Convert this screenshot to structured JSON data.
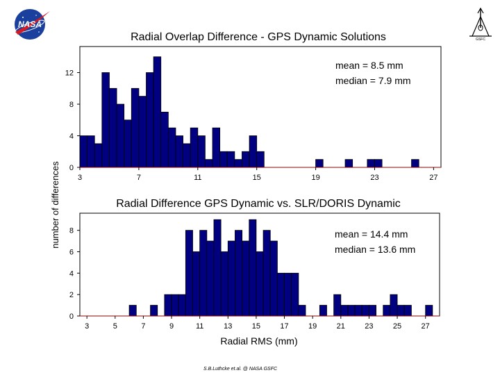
{
  "logos": {
    "nasa": {
      "text": "NASA",
      "colors": {
        "disc": "#1b3f9c",
        "swoosh": "#d71920",
        "text": "#ffffff"
      }
    },
    "gsfc": {
      "text": "GSFC"
    }
  },
  "colors": {
    "bar_fill": "#000080",
    "bar_stroke": "#000000",
    "baseline": "#8b0000",
    "frame": "#000000"
  },
  "ylabel": "number of differences",
  "credit": "S.B.Luthcke et.al. @ NASA GSFC",
  "chart_data": [
    {
      "type": "bar",
      "title": "Radial Overlap Difference - GPS Dynamic Solutions",
      "xlabel": "",
      "ylabel": "number of differences",
      "bin_width": 0.5,
      "bin_centers": [
        3.25,
        3.75,
        4.25,
        4.75,
        5.25,
        5.75,
        6.25,
        6.75,
        7.25,
        7.75,
        8.25,
        8.75,
        9.25,
        9.75,
        10.25,
        10.75,
        11.25,
        11.75,
        12.25,
        12.75,
        13.25,
        13.75,
        14.25,
        14.75,
        15.25,
        19.25,
        21.25,
        22.75,
        23.25,
        25.75
      ],
      "values": [
        4,
        4,
        3,
        12,
        10,
        8,
        6,
        10,
        9,
        12,
        14,
        7,
        5,
        4,
        3,
        5,
        4,
        1,
        5,
        2,
        2,
        1,
        2,
        4,
        2,
        1,
        1,
        1,
        1,
        1
      ],
      "xlim": [
        3,
        27.5
      ],
      "ylim": [
        0,
        15.3
      ],
      "xticks": [
        3,
        7,
        11,
        15,
        19,
        23,
        27
      ],
      "yticks": [
        0,
        4,
        8,
        12
      ],
      "annotations": [
        "mean = 8.5 mm",
        "median = 7.9 mm"
      ],
      "grid": false
    },
    {
      "type": "bar",
      "title": "Radial Difference GPS Dynamic vs. SLR/DORIS Dynamic",
      "xlabel": "Radial RMS (mm)",
      "ylabel": "number of differences",
      "bin_width": 0.5,
      "bin_centers": [
        6.25,
        7.75,
        8.75,
        9.25,
        9.75,
        10.25,
        10.75,
        11.25,
        11.75,
        12.25,
        12.75,
        13.25,
        13.75,
        14.25,
        14.75,
        15.25,
        15.75,
        16.25,
        16.75,
        17.25,
        17.75,
        18.25,
        19.75,
        20.75,
        21.25,
        21.75,
        22.25,
        22.75,
        23.25,
        24.25,
        24.75,
        25.25,
        25.75,
        27.25
      ],
      "values": [
        1,
        1,
        2,
        2,
        2,
        8,
        6,
        8,
        7,
        9,
        6,
        7,
        8,
        7,
        9,
        6,
        8,
        7,
        4,
        4,
        4,
        1,
        1,
        2,
        1,
        1,
        1,
        1,
        1,
        1,
        2,
        1,
        1,
        1
      ],
      "xlim": [
        2.5,
        28
      ],
      "ylim": [
        0,
        9.6
      ],
      "xticks": [
        3,
        5,
        7,
        9,
        11,
        13,
        15,
        17,
        19,
        21,
        23,
        25,
        27
      ],
      "yticks": [
        0,
        2,
        4,
        6,
        8
      ],
      "annotations": [
        "mean = 14.4 mm",
        "median = 13.6 mm"
      ],
      "grid": false
    }
  ]
}
